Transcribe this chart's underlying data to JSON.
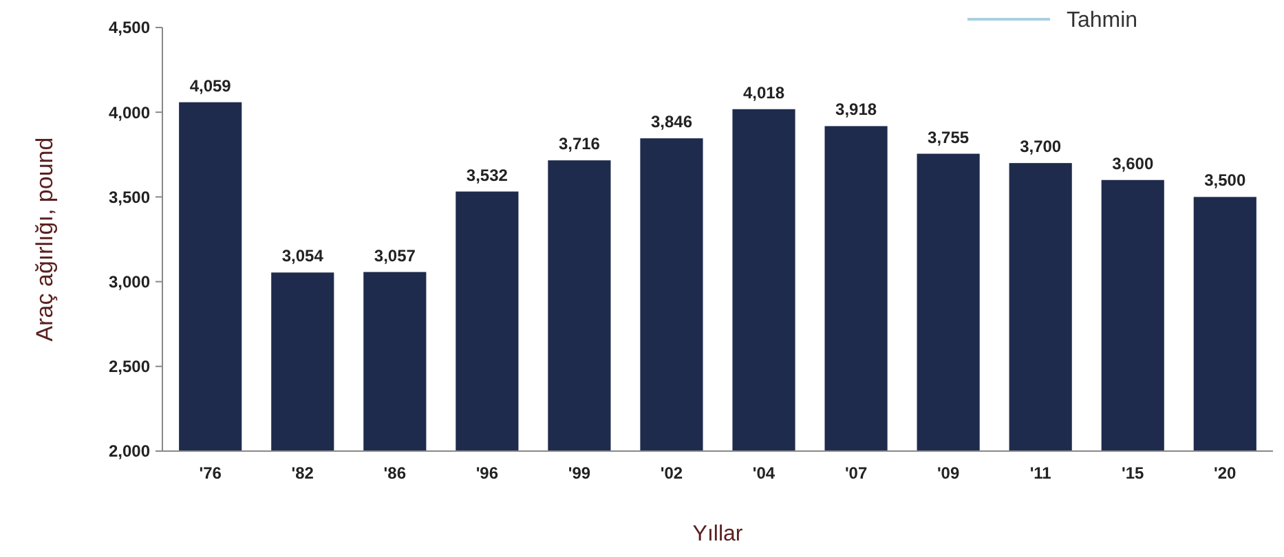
{
  "chart_data": {
    "type": "bar",
    "xlabel": "Yıllar",
    "ylabel": "Araç ağırlığı, pound",
    "categories": [
      "'76",
      "'82",
      "'86",
      "'96",
      "'99",
      "'02",
      "'04",
      "'07",
      "'09",
      "'11",
      "'15",
      "'20"
    ],
    "series": [
      {
        "color": "#1f2b4d",
        "values": [
          4059,
          3054,
          3057,
          3532,
          3716,
          3846,
          4018,
          3918,
          3755,
          3700,
          3600,
          3500
        ],
        "value_labels": [
          "4,059",
          "3,054",
          "3,057",
          "3,532",
          "3,716",
          "3,846",
          "4,018",
          "3,918",
          "3,755",
          "3,700",
          "3,600",
          "3,500"
        ]
      },
      {
        "type": "line",
        "name": "Tahmin",
        "color": "#a9cfe0",
        "values": [
          null,
          null,
          null,
          null,
          null,
          null,
          null,
          null,
          null,
          null,
          null,
          null
        ]
      }
    ],
    "ylim": [
      2000,
      4500
    ],
    "yticks": [
      {
        "value": 2000,
        "label": "2,000"
      },
      {
        "value": 2500,
        "label": "2,500"
      },
      {
        "value": 3000,
        "label": "3,000"
      },
      {
        "value": 3500,
        "label": "3,500"
      },
      {
        "value": 4000,
        "label": "4,000"
      },
      {
        "value": 4500,
        "label": "4,500"
      }
    ],
    "legend": "top right",
    "grid": false
  }
}
